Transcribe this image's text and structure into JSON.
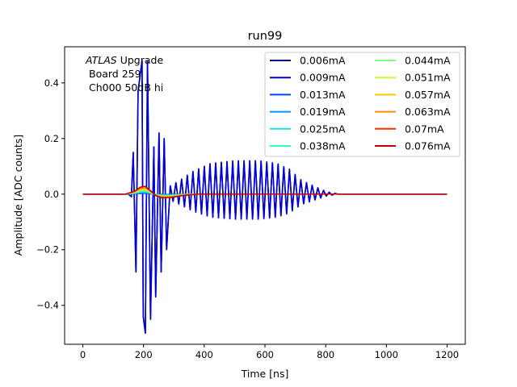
{
  "chart_data": {
    "type": "line",
    "title": "run99",
    "xlabel": "Time [ns]",
    "ylabel": "Amplitude [ADC counts]",
    "xlim": [
      -60,
      1260
    ],
    "ylim": [
      -0.54,
      0.53
    ],
    "xticks": [
      0,
      200,
      400,
      600,
      800,
      1000,
      1200
    ],
    "yticks": [
      -0.4,
      -0.2,
      0.0,
      0.2,
      0.4
    ],
    "xtick_labels": [
      "0",
      "200",
      "400",
      "600",
      "800",
      "1000",
      "1200"
    ],
    "ytick_labels": [
      "−0.4",
      "−0.2",
      "0.0",
      "0.2",
      "0.4"
    ],
    "grid": false,
    "legend_position": "top-right",
    "legend_columns": 2,
    "annotation": {
      "italic": "ATLAS",
      "rest": " Upgrade",
      "line2": "Board 259",
      "line3": "Ch000 50dB hi"
    },
    "series": [
      {
        "name": "0.006mA",
        "color": "#00007f"
      },
      {
        "name": "0.009mA",
        "color": "#0000d7"
      },
      {
        "name": "0.013mA",
        "color": "#0044ff"
      },
      {
        "name": "0.019mA",
        "color": "#0094ff"
      },
      {
        "name": "0.025mA",
        "color": "#18e0e0"
      },
      {
        "name": "0.038mA",
        "color": "#2cffca"
      },
      {
        "name": "0.044mA",
        "color": "#7dff7a"
      },
      {
        "name": "0.051mA",
        "color": "#c1ff36"
      },
      {
        "name": "0.057mA",
        "color": "#ffc800"
      },
      {
        "name": "0.063mA",
        "color": "#ff8d00"
      },
      {
        "name": "0.07mA",
        "color": "#fa2f00"
      },
      {
        "name": "0.076mA",
        "color": "#c40000"
      }
    ],
    "blue_signal": {
      "x_start": 0,
      "x_end": 1200,
      "baseline": 0.0,
      "osc_period_ns": 18.7,
      "peaks": [
        {
          "x": 166,
          "y": 0.15
        },
        {
          "x": 175,
          "y": -0.28
        },
        {
          "x": 182,
          "y": 0.37
        },
        {
          "x": 195,
          "y": 0.48
        },
        {
          "x": 199,
          "y": -0.44
        },
        {
          "x": 206,
          "y": -0.5
        },
        {
          "x": 213,
          "y": 0.48
        },
        {
          "x": 223,
          "y": -0.45
        },
        {
          "x": 234,
          "y": 0.17
        },
        {
          "x": 240,
          "y": -0.37
        },
        {
          "x": 251,
          "y": 0.22
        },
        {
          "x": 258,
          "y": -0.28
        },
        {
          "x": 268,
          "y": 0.2
        },
        {
          "x": 276,
          "y": -0.2
        }
      ],
      "tail_envelope": [
        {
          "x": 290,
          "y": 0.03
        },
        {
          "x": 320,
          "y": 0.05
        },
        {
          "x": 360,
          "y": 0.08
        },
        {
          "x": 420,
          "y": 0.11
        },
        {
          "x": 500,
          "y": 0.12
        },
        {
          "x": 580,
          "y": 0.12
        },
        {
          "x": 640,
          "y": 0.11
        },
        {
          "x": 680,
          "y": 0.09
        },
        {
          "x": 720,
          "y": 0.05
        },
        {
          "x": 760,
          "y": 0.03
        },
        {
          "x": 800,
          "y": 0.01
        },
        {
          "x": 840,
          "y": 0.0
        }
      ]
    },
    "red_signal": {
      "points": [
        {
          "x": 0,
          "y": 0.0
        },
        {
          "x": 140,
          "y": 0.0
        },
        {
          "x": 170,
          "y": 0.01
        },
        {
          "x": 190,
          "y": 0.025
        },
        {
          "x": 205,
          "y": 0.028
        },
        {
          "x": 220,
          "y": 0.015
        },
        {
          "x": 240,
          "y": -0.005
        },
        {
          "x": 260,
          "y": -0.013
        },
        {
          "x": 290,
          "y": -0.012
        },
        {
          "x": 330,
          "y": -0.005
        },
        {
          "x": 380,
          "y": 0.0
        },
        {
          "x": 1200,
          "y": 0.0
        }
      ]
    }
  }
}
